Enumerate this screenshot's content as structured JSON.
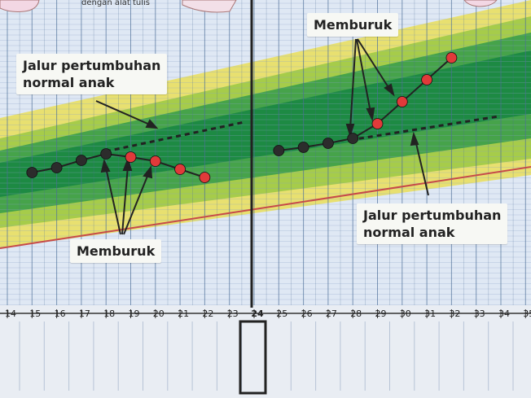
{
  "header_caption": "dengan alat tulis",
  "callouts": {
    "left_top": [
      "Jalur pertumbuhan",
      "normal anak"
    ],
    "left_bottom": "Memburuk",
    "right_top": "Memburuk",
    "right_bottom": [
      "Jalur pertumbuhan",
      "normal anak"
    ]
  },
  "colors": {
    "grid_bg": "#dfe8f4",
    "grid_line": "#8aa6c8",
    "band_yellow": "#e8e070",
    "band_light_green": "#a6cc4a",
    "band_mid_green": "#46a34a",
    "band_dark_green": "#1d8a43",
    "red_line": "#c64a4a",
    "dot_dark": "#2c2c2c",
    "dot_red": "#e03a3a"
  },
  "chart_data": {
    "type": "line",
    "x_ticks": [
      14,
      15,
      16,
      17,
      18,
      19,
      20,
      21,
      22,
      23,
      24,
      25,
      26,
      27,
      28,
      29,
      30,
      31,
      32,
      33,
      34,
      35
    ],
    "highlight_tick": 24,
    "left_child": {
      "dark_points": [
        15,
        16,
        17,
        18
      ],
      "red_points": [
        19,
        20,
        21,
        22
      ]
    },
    "right_child": {
      "dark_points": [
        25,
        26,
        27,
        28
      ],
      "red_points": [
        29,
        30,
        31,
        32
      ]
    }
  }
}
